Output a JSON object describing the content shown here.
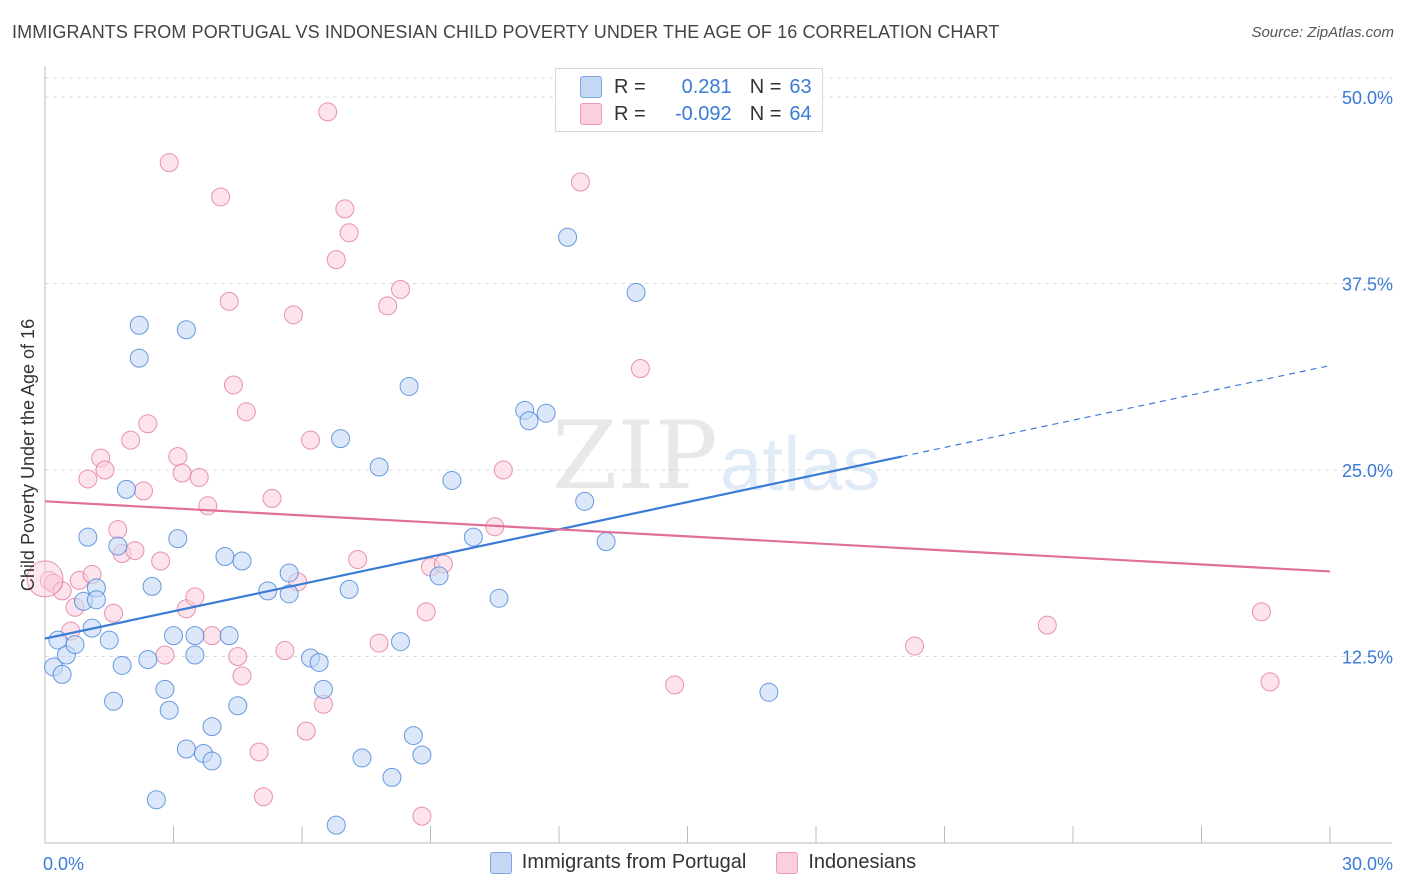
{
  "header": {
    "title": "IMMIGRANTS FROM PORTUGAL VS INDONESIAN CHILD POVERTY UNDER THE AGE OF 16 CORRELATION CHART",
    "source": "Source: ZipAtlas.com"
  },
  "watermark": {
    "zip": "ZIP",
    "atlas": "atlas"
  },
  "legend": {
    "rows": [
      {
        "r_label": "R =",
        "r_value": "0.281",
        "n_label": "N =",
        "n_value": "63"
      },
      {
        "r_label": "R =",
        "r_value": "-0.092",
        "n_label": "N =",
        "n_value": "64"
      }
    ]
  },
  "bottom_legend": {
    "portugal": "Immigrants from Portugal",
    "indonesians": "Indonesians"
  },
  "chart_data": {
    "type": "scatter",
    "ylabel": "Child Poverty Under the Age of 16",
    "xlim": [
      0,
      30
    ],
    "ylim": [
      0,
      50
    ],
    "x_tick_labels": [
      {
        "value": 0,
        "label": "0.0%"
      },
      {
        "value": 30,
        "label": "30.0%"
      }
    ],
    "y_tick_labels": [
      {
        "value": 12.5,
        "label": "12.5%"
      },
      {
        "value": 25,
        "label": "25.0%"
      },
      {
        "value": 37.5,
        "label": "37.5%"
      },
      {
        "value": 50,
        "label": "50.0%"
      }
    ],
    "grid": true,
    "colors": {
      "portugal": "#3a7bd5",
      "portugal_fill": "#c5d9f5",
      "indonesians": "#e0709a",
      "indonesians_fill": "#fbd0de",
      "axis_text": "#3a7bd5"
    },
    "series": [
      {
        "name": "Immigrants from Portugal",
        "color_key": "portugal",
        "trend": {
          "x0": 0,
          "y0": 13.7,
          "x1": 20.0,
          "y1": 25.9,
          "dashed_to_x": 30.0,
          "dashed_to_y": 32.0
        },
        "points": [
          [
            0.2,
            11.8
          ],
          [
            0.3,
            13.6
          ],
          [
            0.4,
            11.3
          ],
          [
            0.5,
            12.6
          ],
          [
            0.7,
            13.3
          ],
          [
            0.9,
            16.2
          ],
          [
            1.0,
            20.5
          ],
          [
            1.1,
            14.4
          ],
          [
            1.2,
            17.1
          ],
          [
            1.5,
            13.6
          ],
          [
            1.6,
            9.5
          ],
          [
            1.7,
            19.9
          ],
          [
            1.8,
            11.9
          ],
          [
            1.9,
            23.7
          ],
          [
            2.2,
            32.5
          ],
          [
            2.2,
            34.7
          ],
          [
            2.4,
            12.3
          ],
          [
            2.5,
            17.2
          ],
          [
            2.6,
            2.9
          ],
          [
            2.8,
            10.3
          ],
          [
            2.9,
            8.9
          ],
          [
            3.1,
            20.4
          ],
          [
            3.3,
            34.4
          ],
          [
            3.3,
            6.3
          ],
          [
            3.5,
            12.6
          ],
          [
            3.5,
            13.9
          ],
          [
            3.7,
            6.0
          ],
          [
            3.9,
            7.8
          ],
          [
            3.9,
            5.5
          ],
          [
            4.2,
            19.2
          ],
          [
            4.3,
            13.9
          ],
          [
            4.5,
            9.2
          ],
          [
            4.6,
            18.9
          ],
          [
            5.2,
            16.9
          ],
          [
            5.7,
            16.7
          ],
          [
            5.7,
            18.1
          ],
          [
            6.2,
            12.4
          ],
          [
            6.5,
            10.3
          ],
          [
            6.8,
            1.2
          ],
          [
            6.9,
            27.1
          ],
          [
            7.1,
            17.0
          ],
          [
            7.4,
            5.7
          ],
          [
            7.8,
            25.2
          ],
          [
            8.1,
            4.4
          ],
          [
            8.3,
            13.5
          ],
          [
            8.5,
            30.6
          ],
          [
            8.6,
            7.2
          ],
          [
            8.8,
            5.9
          ],
          [
            9.2,
            17.9
          ],
          [
            9.5,
            24.3
          ],
          [
            10.0,
            20.5
          ],
          [
            10.6,
            16.4
          ],
          [
            11.2,
            29.0
          ],
          [
            11.3,
            28.3
          ],
          [
            11.7,
            28.8
          ],
          [
            12.2,
            40.6
          ],
          [
            12.6,
            22.9
          ],
          [
            13.1,
            20.2
          ],
          [
            13.8,
            36.9
          ],
          [
            16.9,
            10.1
          ],
          [
            1.2,
            16.3
          ],
          [
            3.0,
            13.9
          ],
          [
            6.4,
            12.1
          ]
        ]
      },
      {
        "name": "Indonesians",
        "color_key": "indonesians",
        "trend": {
          "x0": 0,
          "y0": 22.9,
          "x1": 30.0,
          "y1": 18.2
        },
        "points": [
          [
            0.1,
            17.6
          ],
          [
            0.2,
            17.4
          ],
          [
            0.4,
            16.9
          ],
          [
            0.6,
            14.2
          ],
          [
            0.7,
            15.8
          ],
          [
            0.8,
            17.6
          ],
          [
            1.0,
            24.4
          ],
          [
            1.1,
            18.0
          ],
          [
            1.3,
            25.8
          ],
          [
            1.4,
            25.0
          ],
          [
            1.6,
            15.4
          ],
          [
            1.7,
            21.0
          ],
          [
            1.8,
            19.4
          ],
          [
            2.0,
            27.0
          ],
          [
            2.1,
            19.6
          ],
          [
            2.3,
            23.6
          ],
          [
            2.4,
            28.1
          ],
          [
            2.7,
            18.9
          ],
          [
            2.8,
            12.6
          ],
          [
            2.9,
            45.6
          ],
          [
            3.1,
            25.9
          ],
          [
            3.2,
            24.8
          ],
          [
            3.3,
            15.7
          ],
          [
            3.5,
            16.5
          ],
          [
            3.6,
            24.5
          ],
          [
            3.8,
            22.6
          ],
          [
            3.9,
            13.9
          ],
          [
            4.1,
            43.3
          ],
          [
            4.3,
            36.3
          ],
          [
            4.4,
            30.7
          ],
          [
            4.5,
            12.5
          ],
          [
            4.6,
            11.2
          ],
          [
            4.7,
            28.9
          ],
          [
            5.0,
            6.1
          ],
          [
            5.1,
            3.1
          ],
          [
            5.3,
            23.1
          ],
          [
            5.6,
            12.9
          ],
          [
            5.8,
            35.4
          ],
          [
            5.9,
            17.5
          ],
          [
            6.1,
            7.5
          ],
          [
            6.2,
            27.0
          ],
          [
            6.5,
            9.3
          ],
          [
            6.6,
            49.0
          ],
          [
            6.8,
            39.1
          ],
          [
            7.0,
            42.5
          ],
          [
            7.1,
            40.9
          ],
          [
            7.3,
            19.0
          ],
          [
            7.8,
            13.4
          ],
          [
            8.0,
            36.0
          ],
          [
            8.3,
            37.1
          ],
          [
            8.8,
            1.8
          ],
          [
            8.9,
            15.5
          ],
          [
            9.0,
            18.5
          ],
          [
            9.3,
            18.7
          ],
          [
            10.5,
            21.2
          ],
          [
            10.7,
            25.0
          ],
          [
            12.5,
            44.3
          ],
          [
            13.9,
            31.8
          ],
          [
            14.7,
            10.6
          ],
          [
            20.3,
            13.2
          ],
          [
            23.4,
            14.6
          ],
          [
            28.4,
            15.5
          ],
          [
            28.6,
            10.8
          ],
          [
            0.0,
            17.7
          ]
        ]
      }
    ]
  }
}
